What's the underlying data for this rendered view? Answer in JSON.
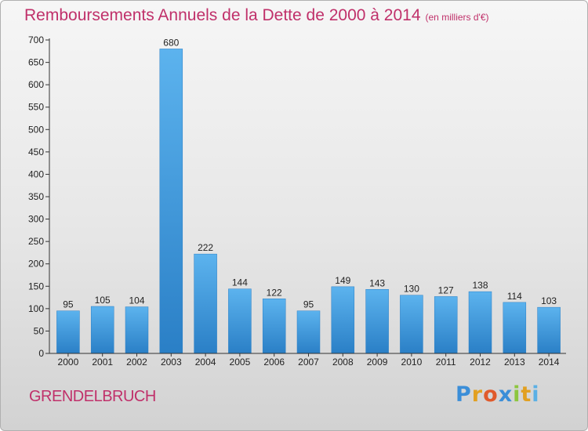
{
  "chart_data": {
    "type": "bar",
    "title": "Remboursements Annuels de la Dette de 2000 à 2014",
    "subtitle": "(en milliers d'€)",
    "categories": [
      "2000",
      "2001",
      "2002",
      "2003",
      "2004",
      "2005",
      "2006",
      "2007",
      "2008",
      "2009",
      "2010",
      "2011",
      "2012",
      "2013",
      "2014"
    ],
    "values": [
      95,
      105,
      104,
      680,
      222,
      144,
      122,
      95,
      149,
      143,
      130,
      127,
      138,
      114,
      103
    ],
    "ylim": [
      0,
      700
    ],
    "yticks": [
      0,
      50,
      100,
      150,
      200,
      250,
      300,
      350,
      400,
      450,
      500,
      550,
      600,
      650,
      700
    ],
    "grid": false,
    "bar_color": "#3f9be0"
  },
  "location": "GRENDELBRUCH",
  "logo": {
    "letters": [
      "P",
      "r",
      "o",
      "x",
      "i",
      "t",
      "i"
    ],
    "colors": [
      "#3b8ed8",
      "#e2a021",
      "#e05a2b",
      "#3b8ed8",
      "#8dc63f",
      "#e2a021",
      "#5bb0e5"
    ]
  }
}
